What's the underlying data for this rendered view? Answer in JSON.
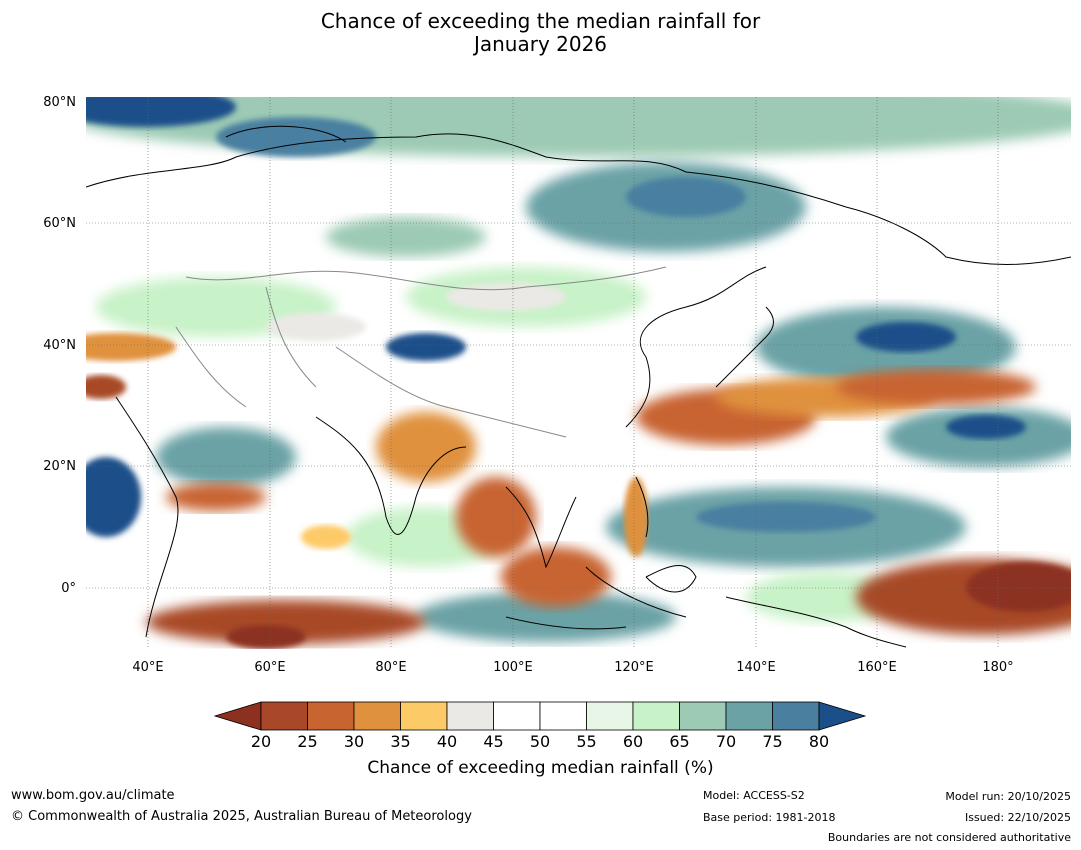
{
  "title": {
    "line1": "Chance of exceeding the median rainfall for",
    "line2": "January 2026"
  },
  "map": {
    "lat_labels": [
      "80°N",
      "60°N",
      "40°N",
      "20°N",
      "0°"
    ],
    "lon_labels": [
      "40°E",
      "60°E",
      "80°E",
      "100°E",
      "120°E",
      "140°E",
      "160°E",
      "180°"
    ],
    "colors": {
      "ocean_dark": "#1a4f8a",
      "ocean_mid": "#4a7fa0",
      "teal": "#6aa2a6",
      "green": "#9ccab4",
      "light_green": "#c8f2c8",
      "pale_green": "#e8f6e8",
      "neutral": "#ffffff",
      "grey": "#ebe9e5",
      "yellow": "#fdca68",
      "orange": "#e0913e",
      "dark_orange": "#c86430",
      "brown": "#a84828",
      "dark_brown": "#8c3020"
    }
  },
  "colorbar": {
    "ticks": [
      "20",
      "25",
      "30",
      "35",
      "40",
      "45",
      "50",
      "55",
      "60",
      "65",
      "70",
      "75",
      "80"
    ],
    "colors": [
      "#8c3020",
      "#a84828",
      "#c86430",
      "#e0913e",
      "#fdca68",
      "#ebe9e5",
      "#ffffff",
      "#ffffff",
      "#e8f6e8",
      "#c8f2c8",
      "#9ccab4",
      "#6aa2a6",
      "#4a7fa0",
      "#1a4f8a"
    ],
    "label": "Chance of exceeding median rainfall (%)"
  },
  "footer": {
    "website": "www.bom.gov.au/climate",
    "copyright": "© Commonwealth of Australia 2025, Australian Bureau of Meteorology",
    "model": "Model: ACCESS-S2",
    "base_period": "Base period: 1981-2018",
    "model_run": "Model run: 20/10/2025",
    "issued": "Issued: 22/10/2025",
    "disclaimer": "Boundaries are not considered authoritative"
  }
}
